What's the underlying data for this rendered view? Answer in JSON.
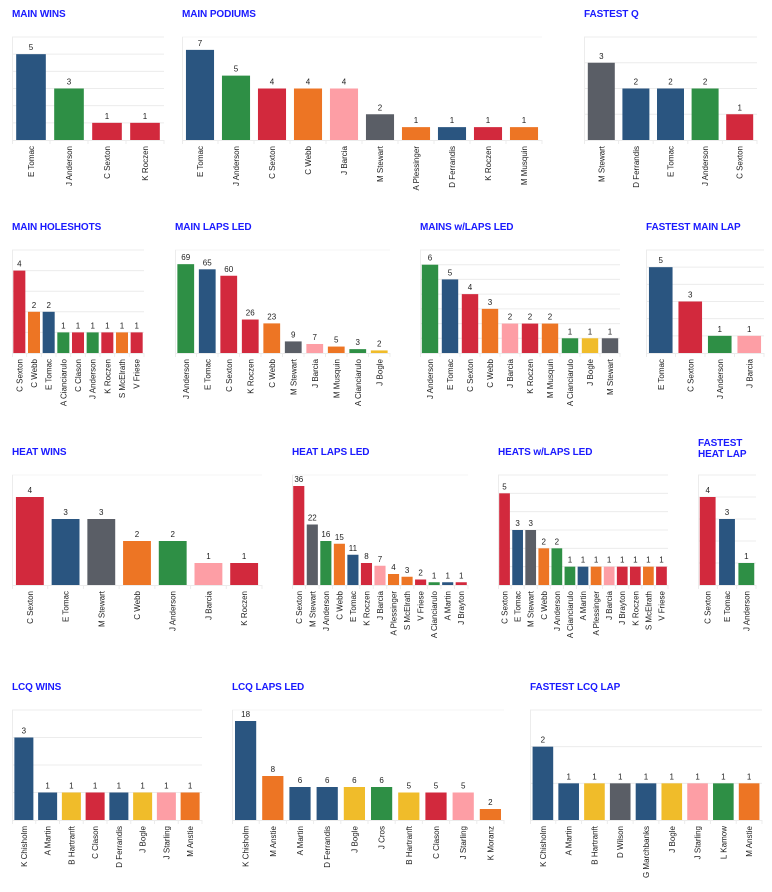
{
  "colors": {
    "title": "#1a1aff",
    "grid": "#ececec",
    "text": "#222222",
    "Tomac": "#2a5580",
    "Anderson": "#2e8f45",
    "Sexton": "#d2293d",
    "Roczen": "#d2293d",
    "Webb": "#ed7524",
    "Barcia": "#fd9ea5",
    "Stewart": "#5a5e66",
    "Bogle": "#f0bc2a"
  },
  "chart_data": [
    {
      "id": "main-wins",
      "type": "bar",
      "title": "MAIN WINS",
      "ylim": [
        0,
        6
      ],
      "grid": true,
      "categories": [
        "E Tomac",
        "J Anderson",
        "C Sexton",
        "K Roczen"
      ],
      "values": [
        5,
        3,
        1,
        1
      ],
      "colors": [
        "#2a5580",
        "#2e8f45",
        "#d2293d",
        "#d2293d"
      ]
    },
    {
      "id": "main-podiums",
      "type": "bar",
      "title": "MAIN PODIUMS",
      "ylim": [
        0,
        8
      ],
      "grid": false,
      "categories": [
        "E Tomac",
        "J Anderson",
        "C Sexton",
        "C Webb",
        "J Barcia",
        "M Stewart",
        "A Plessinger",
        "D Ferrandis",
        "K Roczen",
        "M Musquin"
      ],
      "values": [
        7,
        5,
        4,
        4,
        4,
        2,
        1,
        1,
        1,
        1
      ],
      "colors": [
        "#2a5580",
        "#2e8f45",
        "#d2293d",
        "#ed7524",
        "#fd9ea5",
        "#5a5e66",
        "#ed7524",
        "#2a5580",
        "#d2293d",
        "#ed7524"
      ]
    },
    {
      "id": "fastest-q",
      "type": "bar",
      "title": "FASTEST Q",
      "ylim": [
        0,
        4
      ],
      "grid": true,
      "categories": [
        "M Stewart",
        "D Ferrandis",
        "E Tomac",
        "J Anderson",
        "C Sexton"
      ],
      "values": [
        3,
        2,
        2,
        2,
        1
      ],
      "colors": [
        "#5a5e66",
        "#2a5580",
        "#2a5580",
        "#2e8f45",
        "#d2293d"
      ]
    },
    {
      "id": "main-holeshots",
      "type": "bar",
      "title": "MAIN HOLESHOTS",
      "ylim": [
        0,
        5
      ],
      "grid": true,
      "categories": [
        "C Sexton",
        "C Webb",
        "E Tomac",
        "A Cianciarulo",
        "C Clason",
        "J Anderson",
        "K Roczen",
        "S McElrath",
        "V Friese"
      ],
      "values": [
        4,
        2,
        2,
        1,
        1,
        1,
        1,
        1,
        1
      ],
      "colors": [
        "#d2293d",
        "#ed7524",
        "#2a5580",
        "#2e8f45",
        "#d2293d",
        "#2e8f45",
        "#d2293d",
        "#ed7524",
        "#d2293d"
      ]
    },
    {
      "id": "main-laps-led",
      "type": "bar",
      "title": "MAIN LAPS LED",
      "ylim": [
        0,
        80
      ],
      "grid": false,
      "categories": [
        "J Anderson",
        "E Tomac",
        "C Sexton",
        "K Roczen",
        "C Webb",
        "M Stewart",
        "J Barcia",
        "M Musquin",
        "A Cianciarulo",
        "J Bogle"
      ],
      "values": [
        69,
        65,
        60,
        26,
        23,
        9,
        7,
        5,
        3,
        2
      ],
      "colors": [
        "#2e8f45",
        "#2a5580",
        "#d2293d",
        "#d2293d",
        "#ed7524",
        "#5a5e66",
        "#fd9ea5",
        "#ed7524",
        "#2e8f45",
        "#f0bc2a"
      ]
    },
    {
      "id": "mains-with-laps-led",
      "type": "bar",
      "title": "MAINS w/LAPS LED",
      "ylim": [
        0,
        7
      ],
      "grid": true,
      "categories": [
        "J Anderson",
        "E Tomac",
        "C Sexton",
        "C Webb",
        "J Barcia",
        "K Roczen",
        "M Musquin",
        "A Cianciarulo",
        "J Bogle",
        "M Stewart"
      ],
      "values": [
        6,
        5,
        4,
        3,
        2,
        2,
        2,
        1,
        1,
        1
      ],
      "colors": [
        "#2e8f45",
        "#2a5580",
        "#d2293d",
        "#ed7524",
        "#fd9ea5",
        "#d2293d",
        "#ed7524",
        "#2e8f45",
        "#f0bc2a",
        "#5a5e66"
      ]
    },
    {
      "id": "fastest-main-lap",
      "type": "bar",
      "title": "FASTEST MAIN LAP",
      "ylim": [
        0,
        6
      ],
      "grid": true,
      "categories": [
        "E Tomac",
        "C Sexton",
        "J Anderson",
        "J Barcia"
      ],
      "values": [
        5,
        3,
        1,
        1
      ],
      "colors": [
        "#2a5580",
        "#d2293d",
        "#2e8f45",
        "#fd9ea5"
      ]
    },
    {
      "id": "heat-wins",
      "type": "bar",
      "title": "HEAT WINS",
      "ylim": [
        0,
        5
      ],
      "grid": false,
      "categories": [
        "C Sexton",
        "E Tomac",
        "M Stewart",
        "C Webb",
        "J Anderson",
        "J Barcia",
        "K Roczen"
      ],
      "values": [
        4,
        3,
        3,
        2,
        2,
        1,
        1
      ],
      "colors": [
        "#d2293d",
        "#2a5580",
        "#5a5e66",
        "#ed7524",
        "#2e8f45",
        "#fd9ea5",
        "#d2293d"
      ]
    },
    {
      "id": "heat-laps-led",
      "type": "bar",
      "title": "HEAT LAPS LED",
      "ylim": [
        0,
        40
      ],
      "grid": false,
      "categories": [
        "C Sexton",
        "M Stewart",
        "J Anderson",
        "C Webb",
        "E Tomac",
        "K Roczen",
        "J Barcia",
        "A Plessinger",
        "S McElrath",
        "V Friese",
        "A Cianciarulo",
        "A Martin",
        "J Brayton"
      ],
      "values": [
        36,
        22,
        16,
        15,
        11,
        8,
        7,
        4,
        3,
        2,
        1,
        1,
        1
      ],
      "colors": [
        "#d2293d",
        "#5a5e66",
        "#2e8f45",
        "#ed7524",
        "#2a5580",
        "#d2293d",
        "#fd9ea5",
        "#ed7524",
        "#ed7524",
        "#d2293d",
        "#2e8f45",
        "#2a5580",
        "#d2293d"
      ]
    },
    {
      "id": "heats-with-laps-led",
      "type": "bar",
      "title": "HEATS w/LAPS LED",
      "ylim": [
        0,
        6
      ],
      "grid": true,
      "categories": [
        "C Sexton",
        "E Tomac",
        "M Stewart",
        "C Webb",
        "J Anderson",
        "A Cianciarulo",
        "A Martin",
        "A Plessinger",
        "J Barcia",
        "J Brayton",
        "K Roczen",
        "S McElrath",
        "V Friese"
      ],
      "values": [
        5,
        3,
        3,
        2,
        2,
        1,
        1,
        1,
        1,
        1,
        1,
        1,
        1
      ],
      "colors": [
        "#d2293d",
        "#2a5580",
        "#5a5e66",
        "#ed7524",
        "#2e8f45",
        "#2e8f45",
        "#2a5580",
        "#ed7524",
        "#fd9ea5",
        "#d2293d",
        "#d2293d",
        "#ed7524",
        "#d2293d"
      ]
    },
    {
      "id": "fastest-heat-lap",
      "type": "bar",
      "title": "FASTEST HEAT LAP",
      "title_lines": [
        "FASTEST",
        "HEAT LAP"
      ],
      "ylim": [
        0,
        5
      ],
      "grid": true,
      "categories": [
        "C Sexton",
        "E Tomac",
        "J Anderson"
      ],
      "values": [
        4,
        3,
        1
      ],
      "colors": [
        "#d2293d",
        "#2a5580",
        "#2e8f45"
      ]
    },
    {
      "id": "lcq-wins",
      "type": "bar",
      "title": "LCQ WINS",
      "ylim": [
        0,
        4
      ],
      "grid": true,
      "categories": [
        "K Chisholm",
        "A Martin",
        "B Hartranft",
        "C Clason",
        "D Ferrandis",
        "J Bogle",
        "J Starling",
        "M Anstie"
      ],
      "values": [
        3,
        1,
        1,
        1,
        1,
        1,
        1,
        1
      ],
      "colors": [
        "#2a5580",
        "#2a5580",
        "#f0bc2a",
        "#d2293d",
        "#2a5580",
        "#f0bc2a",
        "#fd9ea5",
        "#ed7524"
      ]
    },
    {
      "id": "lcq-laps-led",
      "type": "bar",
      "title": "LCQ LAPS LED",
      "ylim": [
        0,
        20
      ],
      "grid": false,
      "categories": [
        "K Chisholm",
        "M Anstie",
        "A Martin",
        "D Ferrandis",
        "J Bogle",
        "J Cros",
        "B Hartranft",
        "C Clason",
        "J Starling",
        "K Moranz"
      ],
      "values": [
        18,
        8,
        6,
        6,
        6,
        6,
        5,
        5,
        5,
        2
      ],
      "colors": [
        "#2a5580",
        "#ed7524",
        "#2a5580",
        "#2a5580",
        "#f0bc2a",
        "#2e8f45",
        "#f0bc2a",
        "#d2293d",
        "#fd9ea5",
        "#ed7524"
      ]
    },
    {
      "id": "fastest-lcq-lap",
      "type": "bar",
      "title": "FASTEST LCQ LAP",
      "ylim": [
        0,
        3
      ],
      "grid": true,
      "categories": [
        "K Chisholm",
        "A Martin",
        "B Hartranft",
        "D Wilson",
        "G Marchbanks",
        "J Bogle",
        "J Starling",
        "L Kamow",
        "M Anstie"
      ],
      "values": [
        2,
        1,
        1,
        1,
        1,
        1,
        1,
        1,
        1
      ],
      "colors": [
        "#2a5580",
        "#2a5580",
        "#f0bc2a",
        "#5a5e66",
        "#2a5580",
        "#f0bc2a",
        "#fd9ea5",
        "#2e8f45",
        "#ed7524"
      ]
    }
  ]
}
